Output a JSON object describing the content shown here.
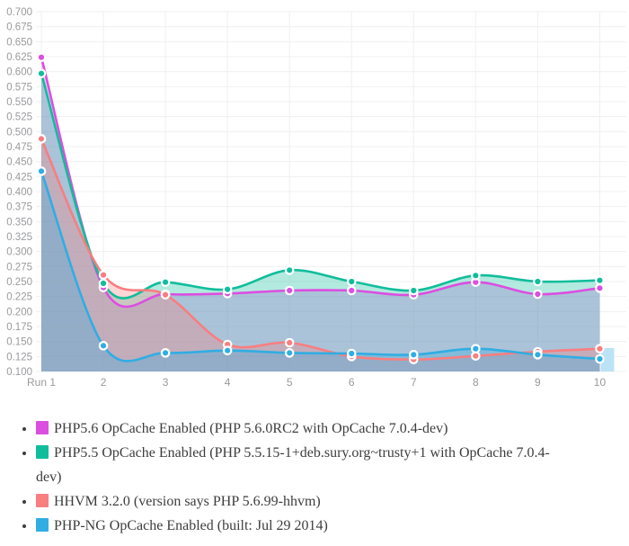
{
  "page": {
    "background": "#ffffff"
  },
  "chart_data": {
    "type": "area",
    "title": "",
    "xlabel": "",
    "ylabel": "",
    "x_categories": [
      "Run 1",
      "2",
      "3",
      "4",
      "5",
      "6",
      "7",
      "8",
      "9",
      "10"
    ],
    "y_ticks": [
      "0.700",
      "0.675",
      "0.650",
      "0.625",
      "0.600",
      "0.575",
      "0.550",
      "0.525",
      "0.500",
      "0.475",
      "0.450",
      "0.425",
      "0.400",
      "0.375",
      "0.350",
      "0.325",
      "0.300",
      "0.275",
      "0.250",
      "0.225",
      "0.200",
      "0.175",
      "0.150",
      "0.125",
      "0.100"
    ],
    "ylim": [
      0.1,
      0.7
    ],
    "y_step": 0.025,
    "grid": true,
    "grid_color": "#f0f0f0",
    "axis_label_color": "#999a9c",
    "fill_opacity": 0.32,
    "line_width": 2.6,
    "marker": {
      "radius": 4.2,
      "ring_color": "#ffffff",
      "ring_width": 2.2
    },
    "legend_position": "bottom",
    "active_highlight": {
      "run_index": 10,
      "top_value": 0.139,
      "width": 15,
      "color": "#BCE2F5"
    },
    "series": [
      {
        "id": "php56-opcache",
        "label": "PHP5.6 OpCache Enabled (PHP 5.6.0RC2 with OpCache 7.0.4-dev)",
        "color": "#DC4EE0",
        "values": [
          0.624,
          0.24,
          0.229,
          0.23,
          0.235,
          0.235,
          0.228,
          0.249,
          0.229,
          0.239
        ]
      },
      {
        "id": "php55-opcache",
        "label": "PHP5.5 OpCache Enabled (PHP 5.5.15-1+deb.sury.org~trusty+1 with OpCache 7.0.4-dev)",
        "color": "#10BD9B",
        "values": [
          0.597,
          0.247,
          0.249,
          0.237,
          0.269,
          0.25,
          0.235,
          0.26,
          0.25,
          0.252
        ]
      },
      {
        "id": "hhvm-320",
        "label": "HHVM 3.2.0 (version says PHP 5.6.99-hhvm)",
        "color": "#F87E80",
        "values": [
          0.488,
          0.261,
          0.228,
          0.145,
          0.148,
          0.125,
          0.12,
          0.126,
          0.133,
          0.138
        ]
      },
      {
        "id": "php-ng",
        "label": "PHP-NG OpCache Enabled (built: Jul 29 2014)",
        "color": "#30ADE3",
        "values": [
          0.434,
          0.143,
          0.131,
          0.135,
          0.131,
          0.13,
          0.128,
          0.138,
          0.128,
          0.121
        ]
      }
    ]
  },
  "legend": {
    "text_color": "#3d3d3d"
  }
}
